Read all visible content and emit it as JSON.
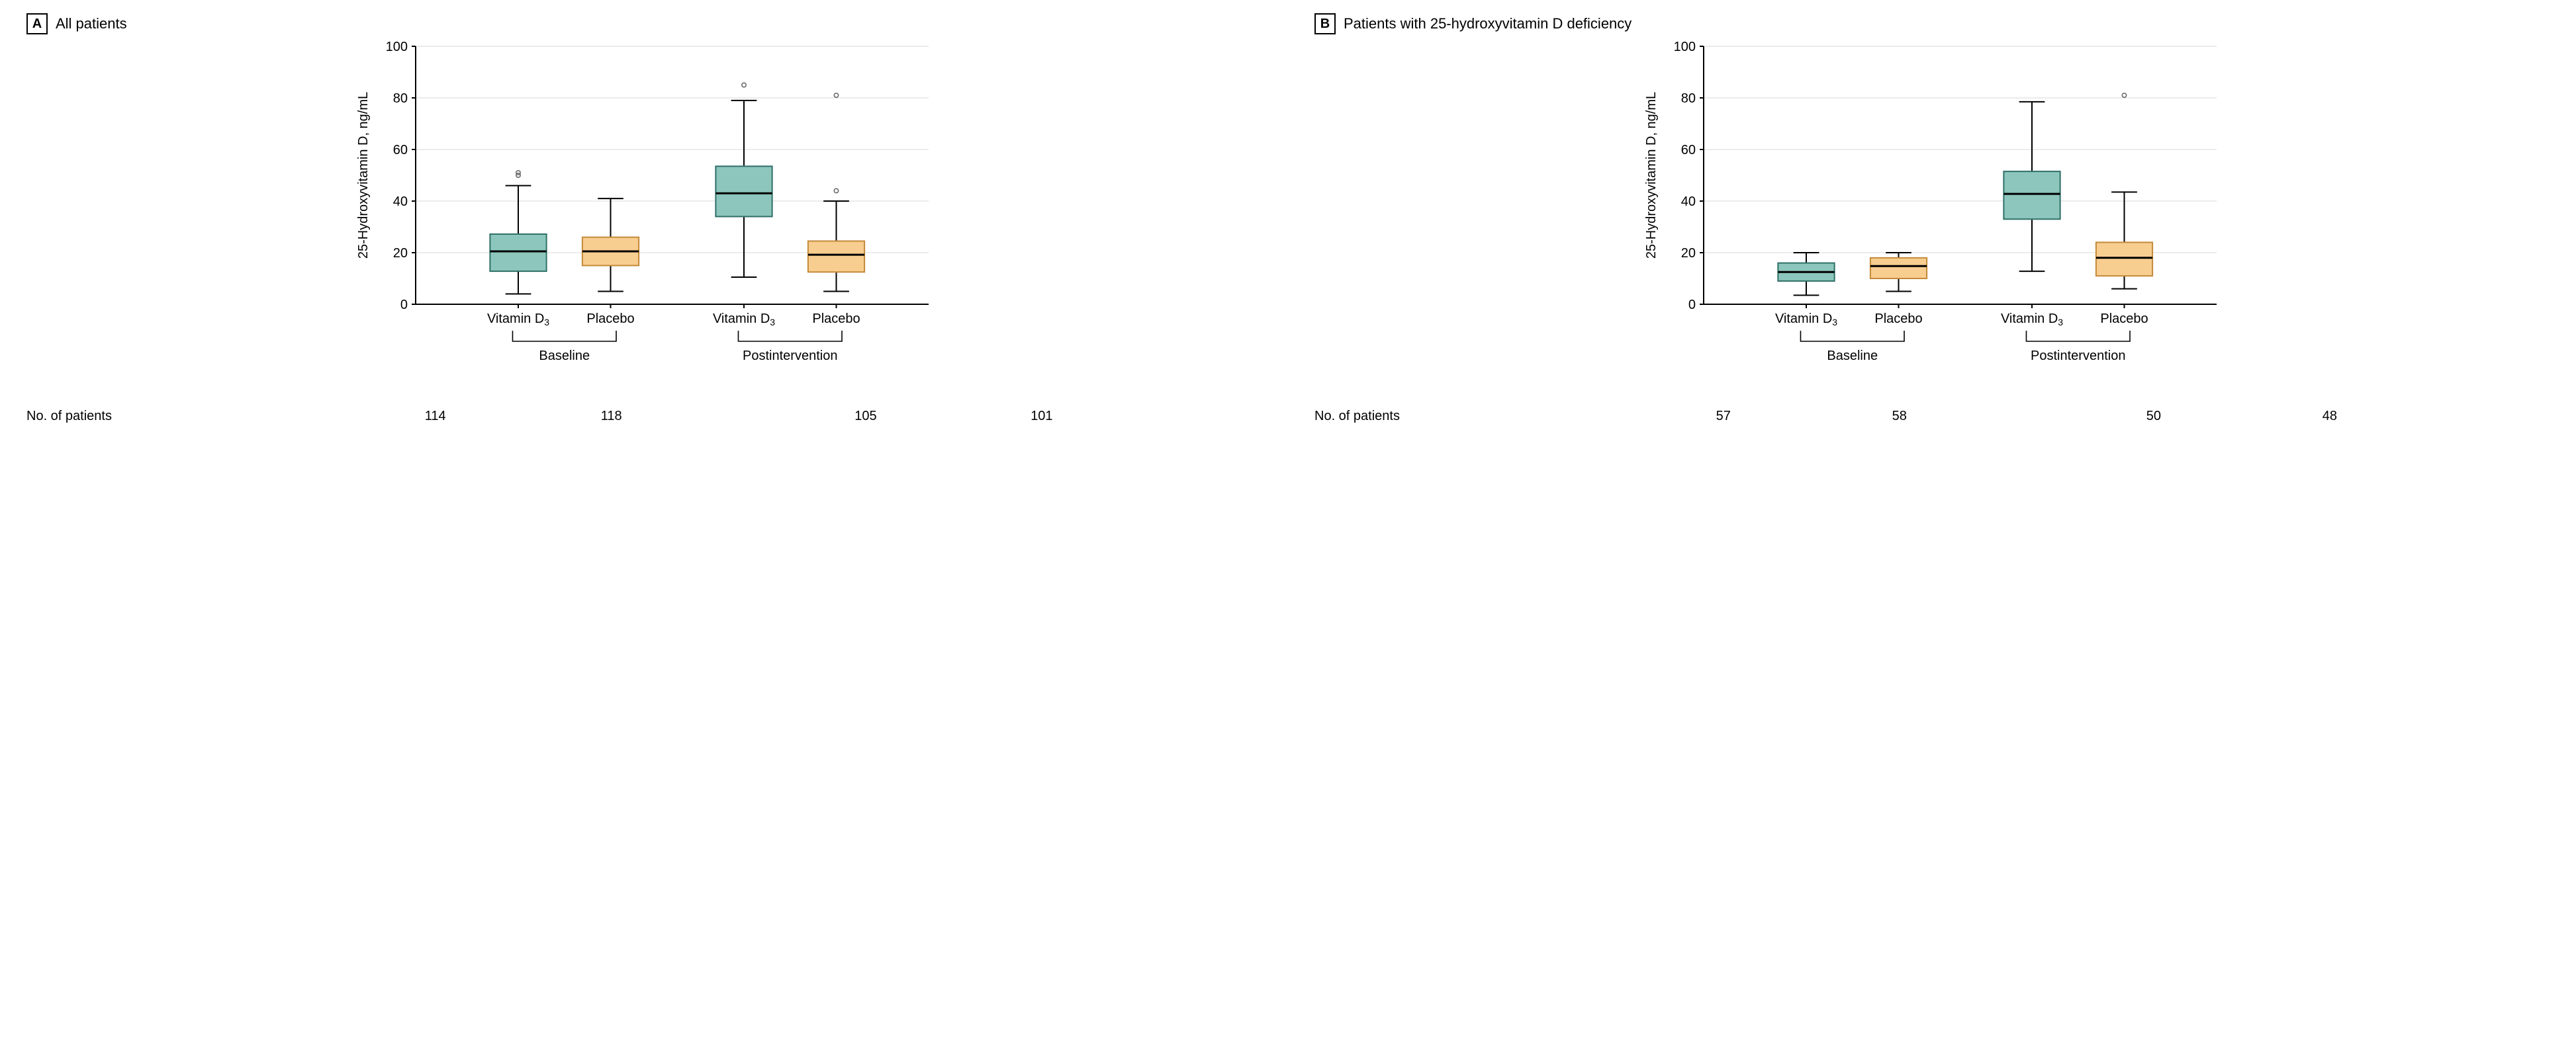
{
  "layout": {
    "plot": {
      "ymin": 0,
      "ymax": 100,
      "yticks": [
        0,
        20,
        40,
        60,
        80,
        100
      ]
    },
    "colors": {
      "vitd_fill": "#8cc6bc",
      "vitd_stroke": "#2f6f67",
      "placebo_fill": "#f8cd90",
      "placebo_stroke": "#c48a3a",
      "axis": "#000000",
      "grid": "#d8d8d8",
      "text": "#000000",
      "whisker": "#000000",
      "median": "#000000",
      "outlier_stroke": "#6b6b6b",
      "bg": "#ffffff"
    },
    "font": {
      "family": "Arial",
      "size_title": 22,
      "size_axis": 20,
      "size_tick": 20
    },
    "box_halfwidth": 5.5,
    "whisker_cap_halfwidth": 2.5,
    "outlier_r": 3.2
  },
  "ylabel": "25-Hydroxyvitamin D, ng/mL",
  "nrow_label": "No. of patients",
  "category_labels": {
    "vitd": "Vitamin D",
    "vitd_sub": "3",
    "placebo": "Placebo"
  },
  "group_labels": {
    "baseline": "Baseline",
    "post": "Postintervention"
  },
  "panels": [
    {
      "letter": "A",
      "title": "All patients",
      "groups": [
        {
          "name": "Baseline",
          "boxes": [
            {
              "cat": "vitd",
              "median": 20.5,
              "q1": 12.8,
              "q3": 27.2,
              "wlow": 4.0,
              "whigh": 46.0,
              "outliers": [
                51.0,
                50.0
              ],
              "n": 114
            },
            {
              "cat": "placebo",
              "median": 20.5,
              "q1": 15.0,
              "q3": 26.0,
              "wlow": 5.0,
              "whigh": 41.0,
              "outliers": [],
              "n": 118
            }
          ]
        },
        {
          "name": "Postintervention",
          "boxes": [
            {
              "cat": "vitd",
              "median": 43.0,
              "q1": 34.0,
              "q3": 53.5,
              "wlow": 10.5,
              "whigh": 79.0,
              "outliers": [
                85.0
              ],
              "n": 105
            },
            {
              "cat": "placebo",
              "median": 19.2,
              "q1": 12.5,
              "q3": 24.5,
              "wlow": 5.0,
              "whigh": 40.0,
              "outliers": [
                44.0,
                81.0
              ],
              "n": 101
            }
          ]
        }
      ]
    },
    {
      "letter": "B",
      "title": "Patients with 25-hydroxyvitamin D deficiency",
      "groups": [
        {
          "name": "Baseline",
          "boxes": [
            {
              "cat": "vitd",
              "median": 12.5,
              "q1": 9.0,
              "q3": 16.0,
              "wlow": 3.5,
              "whigh": 20.0,
              "outliers": [],
              "n": 57
            },
            {
              "cat": "placebo",
              "median": 14.8,
              "q1": 10.0,
              "q3": 18.0,
              "wlow": 5.0,
              "whigh": 20.0,
              "outliers": [],
              "n": 58
            }
          ]
        },
        {
          "name": "Postintervention",
          "boxes": [
            {
              "cat": "vitd",
              "median": 42.8,
              "q1": 33.0,
              "q3": 51.5,
              "wlow": 12.8,
              "whigh": 78.5,
              "outliers": [],
              "n": 50
            },
            {
              "cat": "placebo",
              "median": 18.0,
              "q1": 11.0,
              "q3": 24.0,
              "wlow": 6.0,
              "whigh": 43.5,
              "outliers": [
                81.0
              ],
              "n": 48
            }
          ]
        }
      ]
    }
  ]
}
